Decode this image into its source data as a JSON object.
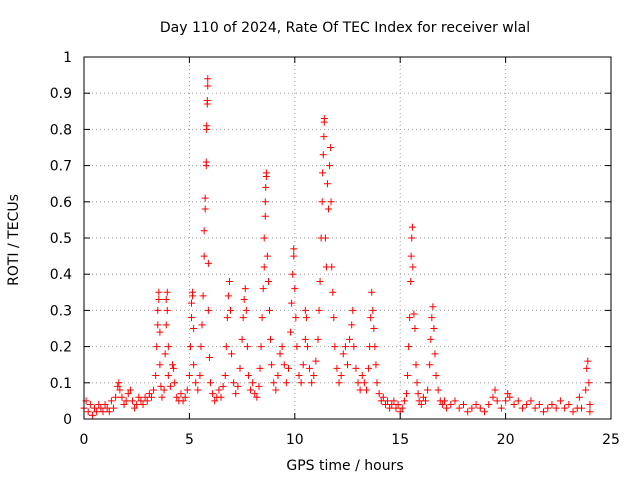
{
  "chart_data": {
    "type": "scatter",
    "title": "Day 110 of 2024, Rate Of TEC Index for receiver wlal",
    "xlabel": "GPS time / hours",
    "ylabel": "ROTI / TECUs",
    "xlim": [
      0,
      25
    ],
    "ylim": [
      0,
      1
    ],
    "x_ticks": [
      0,
      5,
      10,
      15,
      20,
      25
    ],
    "x_tick_labels": [
      "0",
      "5",
      "10",
      "15",
      "20",
      "25"
    ],
    "y_ticks": [
      0,
      0.1,
      0.2,
      0.3,
      0.4,
      0.5,
      0.6,
      0.7,
      0.8,
      0.9,
      1
    ],
    "y_tick_labels": [
      "0",
      "0.1",
      "0.2",
      "0.3",
      "0.4",
      "0.5",
      "0.6",
      "0.7",
      "0.8",
      "0.9",
      "1"
    ],
    "grid": true,
    "marker": "plus",
    "color": "#ff0000",
    "series": [
      {
        "name": "ROTI",
        "points": [
          [
            0.0,
            0.03
          ],
          [
            0.1,
            0.05
          ],
          [
            0.2,
            0.02
          ],
          [
            0.3,
            0.04
          ],
          [
            0.4,
            0.01
          ],
          [
            0.5,
            0.03
          ],
          [
            0.6,
            0.02
          ],
          [
            0.7,
            0.04
          ],
          [
            0.8,
            0.03
          ],
          [
            0.9,
            0.02
          ],
          [
            1.0,
            0.04
          ],
          [
            1.1,
            0.03
          ],
          [
            1.2,
            0.02
          ],
          [
            1.3,
            0.05
          ],
          [
            1.4,
            0.03
          ],
          [
            1.5,
            0.06
          ],
          [
            1.6,
            0.09
          ],
          [
            1.65,
            0.1
          ],
          [
            1.7,
            0.08
          ],
          [
            1.8,
            0.06
          ],
          [
            1.9,
            0.04
          ],
          [
            2.0,
            0.05
          ],
          [
            2.1,
            0.07
          ],
          [
            2.2,
            0.08
          ],
          [
            2.3,
            0.05
          ],
          [
            2.4,
            0.03
          ],
          [
            2.5,
            0.04
          ],
          [
            2.6,
            0.06
          ],
          [
            2.7,
            0.05
          ],
          [
            2.8,
            0.04
          ],
          [
            2.9,
            0.06
          ],
          [
            3.0,
            0.05
          ],
          [
            3.1,
            0.07
          ],
          [
            3.2,
            0.06
          ],
          [
            3.3,
            0.08
          ],
          [
            3.4,
            0.12
          ],
          [
            3.45,
            0.2
          ],
          [
            3.5,
            0.26
          ],
          [
            3.5,
            0.3
          ],
          [
            3.55,
            0.33
          ],
          [
            3.55,
            0.35
          ],
          [
            3.6,
            0.24
          ],
          [
            3.6,
            0.15
          ],
          [
            3.65,
            0.09
          ],
          [
            3.7,
            0.06
          ],
          [
            3.8,
            0.08
          ],
          [
            3.85,
            0.18
          ],
          [
            3.9,
            0.26
          ],
          [
            3.9,
            0.33
          ],
          [
            3.95,
            0.35
          ],
          [
            3.95,
            0.3
          ],
          [
            4.0,
            0.2
          ],
          [
            4.0,
            0.12
          ],
          [
            4.1,
            0.09
          ],
          [
            4.2,
            0.15
          ],
          [
            4.25,
            0.14
          ],
          [
            4.3,
            0.1
          ],
          [
            4.4,
            0.06
          ],
          [
            4.5,
            0.05
          ],
          [
            4.6,
            0.07
          ],
          [
            4.7,
            0.05
          ],
          [
            4.8,
            0.06
          ],
          [
            4.9,
            0.08
          ],
          [
            5.0,
            0.12
          ],
          [
            5.05,
            0.2
          ],
          [
            5.1,
            0.28
          ],
          [
            5.1,
            0.32
          ],
          [
            5.15,
            0.35
          ],
          [
            5.15,
            0.34
          ],
          [
            5.2,
            0.25
          ],
          [
            5.2,
            0.15
          ],
          [
            5.3,
            0.1
          ],
          [
            5.4,
            0.08
          ],
          [
            5.5,
            0.12
          ],
          [
            5.55,
            0.2
          ],
          [
            5.6,
            0.26
          ],
          [
            5.65,
            0.34
          ],
          [
            5.7,
            0.45
          ],
          [
            5.7,
            0.52
          ],
          [
            5.75,
            0.58
          ],
          [
            5.75,
            0.61
          ],
          [
            5.8,
            0.7
          ],
          [
            5.8,
            0.71
          ],
          [
            5.82,
            0.8
          ],
          [
            5.82,
            0.81
          ],
          [
            5.85,
            0.87
          ],
          [
            5.85,
            0.88
          ],
          [
            5.87,
            0.92
          ],
          [
            5.87,
            0.94
          ],
          [
            5.9,
            0.43
          ],
          [
            5.9,
            0.3
          ],
          [
            5.95,
            0.17
          ],
          [
            6.0,
            0.1
          ],
          [
            6.1,
            0.07
          ],
          [
            6.2,
            0.05
          ],
          [
            6.3,
            0.06
          ],
          [
            6.4,
            0.08
          ],
          [
            6.5,
            0.06
          ],
          [
            6.6,
            0.09
          ],
          [
            6.7,
            0.12
          ],
          [
            6.75,
            0.2
          ],
          [
            6.8,
            0.28
          ],
          [
            6.85,
            0.34
          ],
          [
            6.9,
            0.38
          ],
          [
            6.95,
            0.3
          ],
          [
            7.0,
            0.18
          ],
          [
            7.1,
            0.1
          ],
          [
            7.2,
            0.07
          ],
          [
            7.3,
            0.09
          ],
          [
            7.4,
            0.14
          ],
          [
            7.5,
            0.22
          ],
          [
            7.55,
            0.28
          ],
          [
            7.6,
            0.33
          ],
          [
            7.65,
            0.36
          ],
          [
            7.7,
            0.3
          ],
          [
            7.75,
            0.2
          ],
          [
            7.8,
            0.12
          ],
          [
            7.9,
            0.08
          ],
          [
            8.0,
            0.1
          ],
          [
            8.1,
            0.07
          ],
          [
            8.2,
            0.06
          ],
          [
            8.3,
            0.09
          ],
          [
            8.35,
            0.14
          ],
          [
            8.4,
            0.2
          ],
          [
            8.45,
            0.28
          ],
          [
            8.5,
            0.36
          ],
          [
            8.55,
            0.42
          ],
          [
            8.55,
            0.5
          ],
          [
            8.6,
            0.56
          ],
          [
            8.6,
            0.6
          ],
          [
            8.62,
            0.64
          ],
          [
            8.65,
            0.67
          ],
          [
            8.65,
            0.68
          ],
          [
            8.7,
            0.45
          ],
          [
            8.75,
            0.38
          ],
          [
            8.8,
            0.3
          ],
          [
            8.85,
            0.22
          ],
          [
            8.9,
            0.15
          ],
          [
            9.0,
            0.1
          ],
          [
            9.1,
            0.08
          ],
          [
            9.2,
            0.12
          ],
          [
            9.3,
            0.18
          ],
          [
            9.4,
            0.2
          ],
          [
            9.5,
            0.15
          ],
          [
            9.6,
            0.1
          ],
          [
            9.7,
            0.14
          ],
          [
            9.8,
            0.24
          ],
          [
            9.85,
            0.32
          ],
          [
            9.9,
            0.4
          ],
          [
            9.95,
            0.47
          ],
          [
            9.95,
            0.45
          ],
          [
            10.0,
            0.36
          ],
          [
            10.05,
            0.28
          ],
          [
            10.1,
            0.2
          ],
          [
            10.2,
            0.12
          ],
          [
            10.3,
            0.1
          ],
          [
            10.4,
            0.15
          ],
          [
            10.5,
            0.22
          ],
          [
            10.5,
            0.3
          ],
          [
            10.55,
            0.28
          ],
          [
            10.6,
            0.2
          ],
          [
            10.7,
            0.14
          ],
          [
            10.8,
            0.1
          ],
          [
            10.9,
            0.12
          ],
          [
            11.0,
            0.16
          ],
          [
            11.1,
            0.22
          ],
          [
            11.15,
            0.3
          ],
          [
            11.2,
            0.38
          ],
          [
            11.25,
            0.5
          ],
          [
            11.3,
            0.6
          ],
          [
            11.32,
            0.68
          ],
          [
            11.35,
            0.73
          ],
          [
            11.38,
            0.78
          ],
          [
            11.4,
            0.82
          ],
          [
            11.4,
            0.83
          ],
          [
            11.45,
            0.5
          ],
          [
            11.5,
            0.42
          ],
          [
            11.55,
            0.65
          ],
          [
            11.6,
            0.58
          ],
          [
            11.65,
            0.7
          ],
          [
            11.7,
            0.75
          ],
          [
            11.72,
            0.6
          ],
          [
            11.75,
            0.42
          ],
          [
            11.8,
            0.35
          ],
          [
            11.85,
            0.28
          ],
          [
            11.9,
            0.2
          ],
          [
            12.0,
            0.14
          ],
          [
            12.1,
            0.1
          ],
          [
            12.2,
            0.12
          ],
          [
            12.3,
            0.18
          ],
          [
            12.4,
            0.2
          ],
          [
            12.5,
            0.15
          ],
          [
            12.6,
            0.22
          ],
          [
            12.7,
            0.26
          ],
          [
            12.75,
            0.3
          ],
          [
            12.8,
            0.2
          ],
          [
            12.9,
            0.14
          ],
          [
            13.0,
            0.1
          ],
          [
            13.1,
            0.08
          ],
          [
            13.2,
            0.12
          ],
          [
            13.3,
            0.1
          ],
          [
            13.4,
            0.08
          ],
          [
            13.5,
            0.14
          ],
          [
            13.55,
            0.2
          ],
          [
            13.6,
            0.28
          ],
          [
            13.65,
            0.35
          ],
          [
            13.7,
            0.3
          ],
          [
            13.75,
            0.25
          ],
          [
            13.8,
            0.2
          ],
          [
            13.85,
            0.15
          ],
          [
            13.9,
            0.1
          ],
          [
            14.0,
            0.07
          ],
          [
            14.1,
            0.05
          ],
          [
            14.2,
            0.06
          ],
          [
            14.3,
            0.04
          ],
          [
            14.4,
            0.05
          ],
          [
            14.5,
            0.03
          ],
          [
            14.6,
            0.04
          ],
          [
            14.7,
            0.05
          ],
          [
            14.8,
            0.03
          ],
          [
            14.9,
            0.04
          ],
          [
            15.0,
            0.02
          ],
          [
            15.1,
            0.03
          ],
          [
            15.2,
            0.05
          ],
          [
            15.3,
            0.07
          ],
          [
            15.35,
            0.12
          ],
          [
            15.4,
            0.2
          ],
          [
            15.45,
            0.28
          ],
          [
            15.5,
            0.38
          ],
          [
            15.52,
            0.45
          ],
          [
            15.55,
            0.5
          ],
          [
            15.58,
            0.53
          ],
          [
            15.6,
            0.42
          ],
          [
            15.65,
            0.29
          ],
          [
            15.7,
            0.25
          ],
          [
            15.75,
            0.15
          ],
          [
            15.8,
            0.1
          ],
          [
            15.85,
            0.07
          ],
          [
            15.9,
            0.05
          ],
          [
            16.0,
            0.04
          ],
          [
            16.1,
            0.06
          ],
          [
            16.2,
            0.05
          ],
          [
            16.3,
            0.08
          ],
          [
            16.4,
            0.15
          ],
          [
            16.45,
            0.22
          ],
          [
            16.5,
            0.28
          ],
          [
            16.55,
            0.31
          ],
          [
            16.6,
            0.25
          ],
          [
            16.65,
            0.18
          ],
          [
            16.7,
            0.12
          ],
          [
            16.8,
            0.08
          ],
          [
            16.9,
            0.05
          ],
          [
            17.0,
            0.04
          ],
          [
            17.1,
            0.05
          ],
          [
            17.2,
            0.03
          ],
          [
            17.4,
            0.04
          ],
          [
            17.6,
            0.05
          ],
          [
            17.8,
            0.03
          ],
          [
            18.0,
            0.04
          ],
          [
            18.2,
            0.02
          ],
          [
            18.4,
            0.03
          ],
          [
            18.6,
            0.04
          ],
          [
            18.8,
            0.03
          ],
          [
            19.0,
            0.02
          ],
          [
            19.2,
            0.04
          ],
          [
            19.4,
            0.06
          ],
          [
            19.5,
            0.08
          ],
          [
            19.6,
            0.05
          ],
          [
            19.8,
            0.03
          ],
          [
            20.0,
            0.05
          ],
          [
            20.1,
            0.07
          ],
          [
            20.2,
            0.06
          ],
          [
            20.4,
            0.04
          ],
          [
            20.6,
            0.05
          ],
          [
            20.8,
            0.03
          ],
          [
            21.0,
            0.04
          ],
          [
            21.2,
            0.05
          ],
          [
            21.4,
            0.03
          ],
          [
            21.6,
            0.04
          ],
          [
            21.8,
            0.02
          ],
          [
            22.0,
            0.03
          ],
          [
            22.2,
            0.04
          ],
          [
            22.4,
            0.03
          ],
          [
            22.6,
            0.05
          ],
          [
            22.8,
            0.03
          ],
          [
            23.0,
            0.04
          ],
          [
            23.2,
            0.02
          ],
          [
            23.4,
            0.03
          ],
          [
            23.5,
            0.06
          ],
          [
            23.6,
            0.03
          ],
          [
            23.8,
            0.08
          ],
          [
            23.85,
            0.14
          ],
          [
            23.9,
            0.16
          ],
          [
            23.95,
            0.1
          ],
          [
            24.0,
            0.04
          ],
          [
            24.0,
            0.02
          ]
        ]
      }
    ]
  }
}
